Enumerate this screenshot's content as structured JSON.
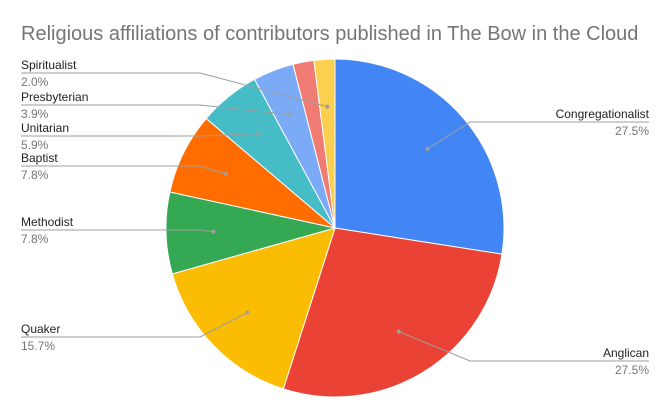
{
  "chart_data": {
    "type": "pie",
    "title": "Religious affiliations of contributors published in The Bow in the Cloud",
    "slices": [
      {
        "label": "Congregationalist",
        "value": 27.5,
        "pct_label": "27.5%",
        "color": "#4285f4"
      },
      {
        "label": "Anglican",
        "value": 27.5,
        "pct_label": "27.5%",
        "color": "#ea4335"
      },
      {
        "label": "Quaker",
        "value": 15.7,
        "pct_label": "15.7%",
        "color": "#fbbc04"
      },
      {
        "label": "Methodist",
        "value": 7.8,
        "pct_label": "7.8%",
        "color": "#34a853"
      },
      {
        "label": "Baptist",
        "value": 7.8,
        "pct_label": "7.8%",
        "color": "#ff6d01"
      },
      {
        "label": "Unitarian",
        "value": 5.9,
        "pct_label": "5.9%",
        "color": "#46bdc6"
      },
      {
        "label": "Presbyterian",
        "value": 3.9,
        "pct_label": "3.9%",
        "color": "#7baaf7"
      },
      {
        "label": "",
        "value": 2.0,
        "pct_label": "",
        "color": "#f07b72"
      },
      {
        "label": "Spiritualist",
        "value": 2.0,
        "pct_label": "2.0%",
        "color": "#fcd04f"
      }
    ],
    "start_angle": "12 o'clock",
    "direction": "clockwise",
    "legend": "none"
  }
}
